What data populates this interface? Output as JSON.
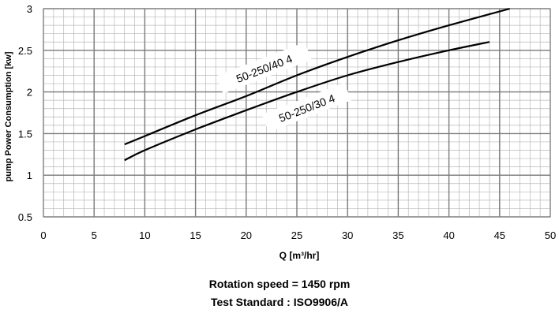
{
  "chart_data": {
    "type": "line",
    "xlabel": "Q [m³/hr]",
    "ylabel": "pump Power Consumption [kw]",
    "xlim": [
      0,
      50
    ],
    "ylim": [
      0.5,
      3
    ],
    "xticks": [
      "0",
      "5",
      "10",
      "15",
      "20",
      "25",
      "30",
      "35",
      "40",
      "45",
      "50"
    ],
    "yticks": [
      "0.5",
      "1",
      "1.5",
      "2",
      "2.5",
      "3"
    ],
    "grid": true,
    "series": [
      {
        "name": "50-250/40 4",
        "x": [
          8,
          10,
          15,
          20,
          25,
          30,
          35,
          40,
          46
        ],
        "y": [
          1.37,
          1.47,
          1.72,
          1.95,
          2.2,
          2.42,
          2.62,
          2.8,
          3.0
        ]
      },
      {
        "name": "50-250/30 4",
        "x": [
          8,
          10,
          15,
          20,
          25,
          30,
          35,
          40,
          44
        ],
        "y": [
          1.18,
          1.3,
          1.55,
          1.78,
          2.0,
          2.2,
          2.36,
          2.5,
          2.6
        ]
      }
    ]
  },
  "footer": {
    "line1": "Rotation speed = 1450 rpm",
    "line2": "Test Standard : ISO9906/A"
  }
}
